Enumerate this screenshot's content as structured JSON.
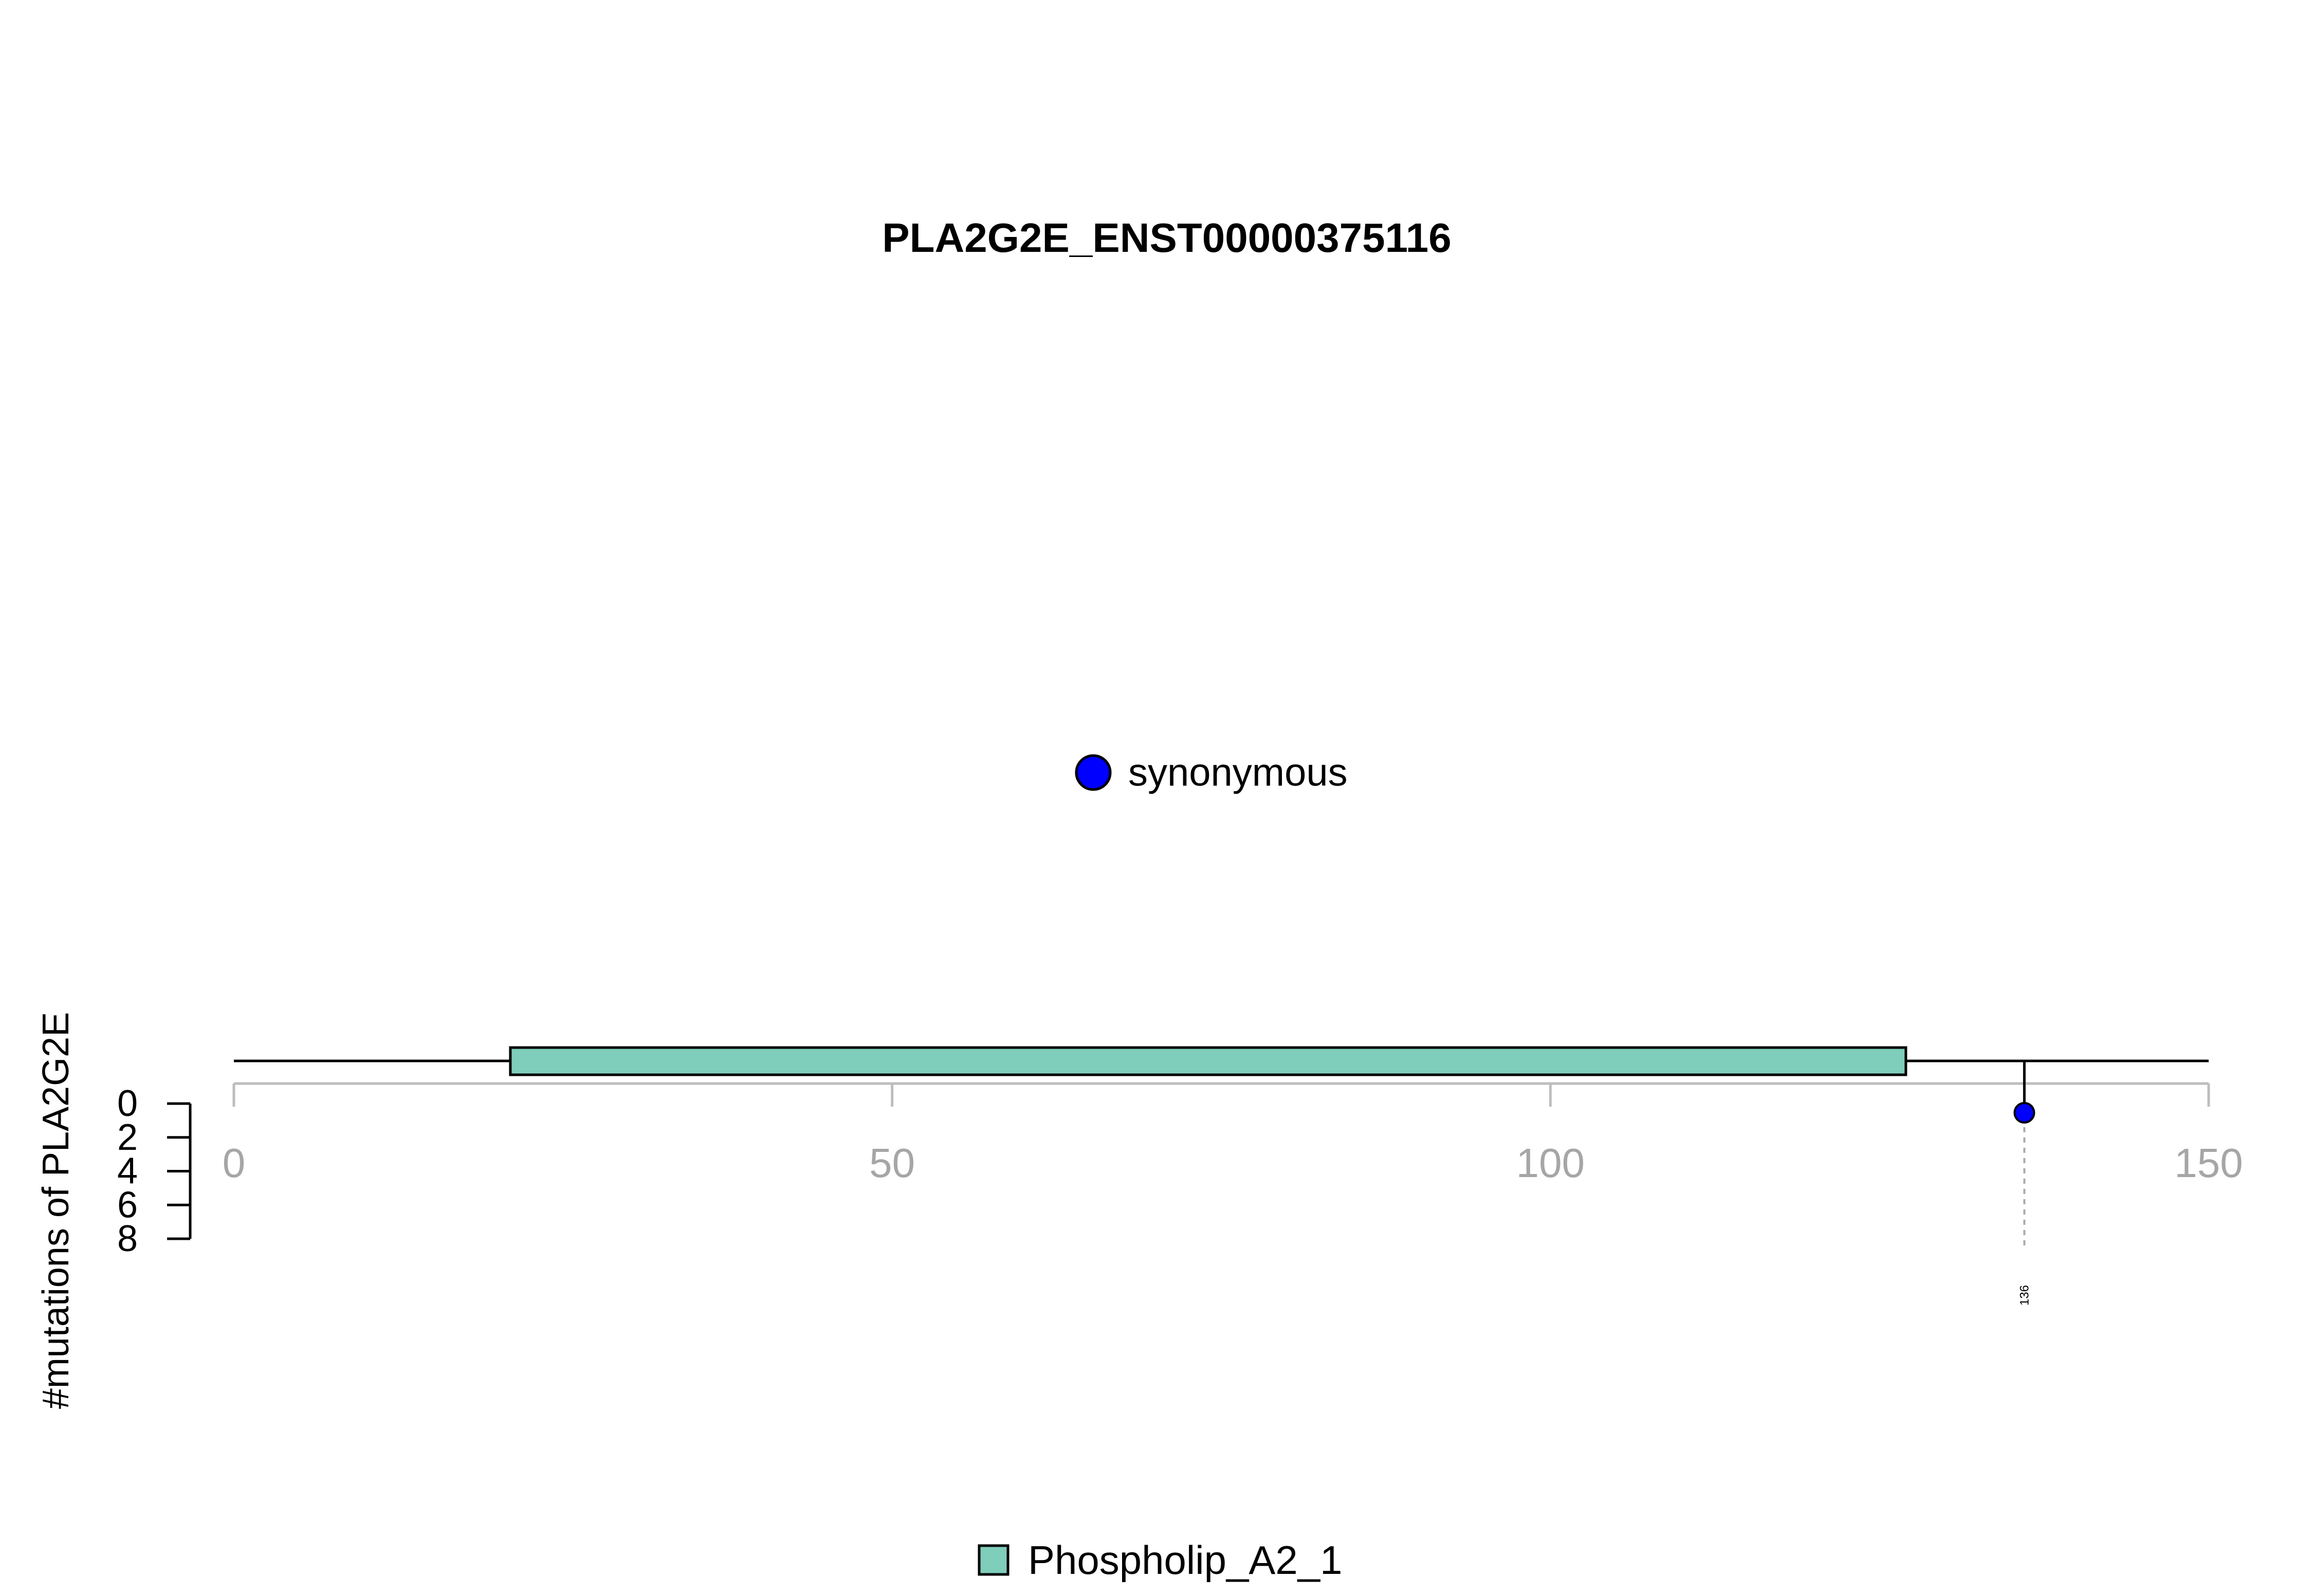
{
  "chart_data": {
    "type": "lollipop",
    "title": "PLA2G2E_ENST00000375116",
    "ylabel": "#mutations of PLA2G2E",
    "xlabel": "",
    "xlim": [
      0,
      150
    ],
    "x_ticks": [
      0,
      50,
      100,
      150
    ],
    "ylim": [
      0,
      8
    ],
    "y_ticks": [
      0,
      2,
      4,
      6,
      8
    ],
    "y_direction": "downward",
    "grid": false,
    "protein_length": 150,
    "domains": [
      {
        "name": "Phospholip_A2_1",
        "start": 21,
        "end": 127,
        "color": "#7FCDBB"
      }
    ],
    "mutations": [
      {
        "position": 136,
        "count": 1,
        "type": "synonymous",
        "label": "136",
        "color": "#0000FF"
      }
    ],
    "mutation_legend": [
      {
        "label": "synonymous",
        "color": "#0000FF"
      }
    ],
    "domain_legend": [
      {
        "label": "Phospholip_A2_1",
        "color": "#7FCDBB"
      }
    ],
    "colors": {
      "axis_gray": "#BDBDBD",
      "tick_label_gray": "#A6A6A6",
      "line_black": "#000000"
    }
  }
}
